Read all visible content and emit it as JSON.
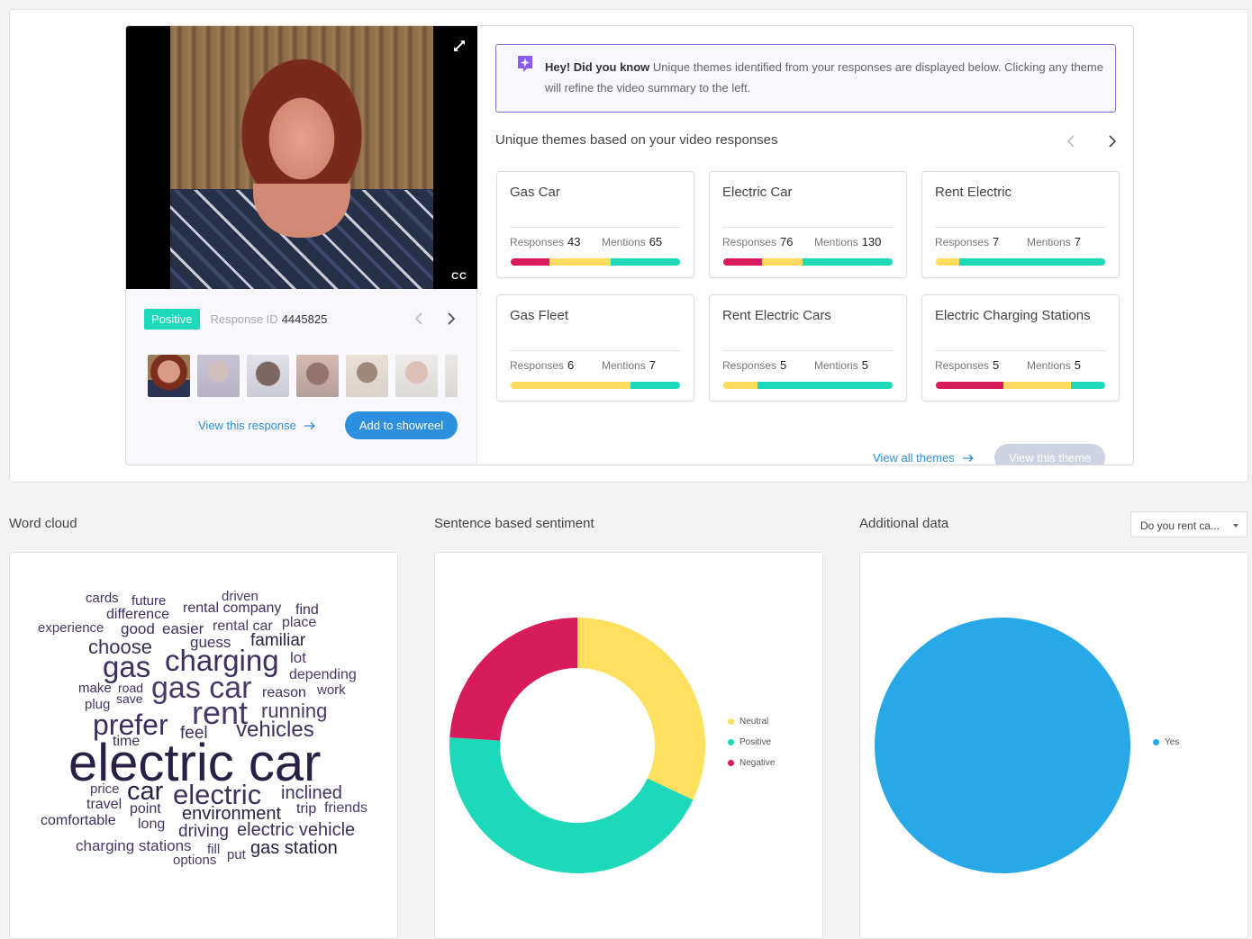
{
  "video": {
    "cc_label": "CC"
  },
  "response": {
    "sentiment_badge": "Positive",
    "id_label": "Response ID",
    "id_value": "4445825",
    "view_link": "View this response",
    "add_showreel": "Add to showreel"
  },
  "info": {
    "lead": "Hey! Did you know",
    "text": "Unique themes identified from your responses are displayed below. Clicking any theme will refine the video summary to the left."
  },
  "themes": {
    "title": "Unique themes based on your video responses",
    "responses_label": "Responses",
    "mentions_label": "Mentions",
    "view_all": "View all themes",
    "view_theme": "View this theme",
    "colors": {
      "negative": "#d81b5a",
      "neutral": "#ffdc5e",
      "positive": "#1ed9b9"
    },
    "items": [
      {
        "name": "Gas Car",
        "responses": "43",
        "mentions": "65",
        "sentiment": {
          "negative": 0.23,
          "neutral": 0.36,
          "positive": 0.41
        }
      },
      {
        "name": "Electric Car",
        "responses": "76",
        "mentions": "130",
        "sentiment": {
          "negative": 0.23,
          "neutral": 0.24,
          "positive": 0.53
        }
      },
      {
        "name": "Rent Electric",
        "responses": "7",
        "mentions": "7",
        "sentiment": {
          "negative": 0,
          "neutral": 0.14,
          "positive": 0.86
        }
      },
      {
        "name": "Gas Fleet",
        "responses": "6",
        "mentions": "7",
        "sentiment": {
          "negative": 0,
          "neutral": 0.71,
          "positive": 0.29
        }
      },
      {
        "name": "Rent Electric Cars",
        "responses": "5",
        "mentions": "5",
        "sentiment": {
          "negative": 0,
          "neutral": 0.2,
          "positive": 0.8
        }
      },
      {
        "name": "Electric Charging Stations",
        "responses": "5",
        "mentions": "5",
        "sentiment": {
          "negative": 0.4,
          "neutral": 0.4,
          "positive": 0.2
        }
      }
    ]
  },
  "sections": {
    "word_cloud": "Word cloud",
    "sentiment": "Sentence based sentiment",
    "additional": "Additional data",
    "dropdown_value": "Do you rent ca..."
  },
  "word_cloud": {
    "words": [
      {
        "text": "electric car",
        "weight": 10
      },
      {
        "text": "rent",
        "weight": 6
      },
      {
        "text": "gas car",
        "weight": 6
      },
      {
        "text": "gas",
        "weight": 5.5
      },
      {
        "text": "charging",
        "weight": 5.5
      },
      {
        "text": "prefer",
        "weight": 5
      },
      {
        "text": "car",
        "weight": 5
      },
      {
        "text": "electric",
        "weight": 5
      },
      {
        "text": "vehicles",
        "weight": 4
      },
      {
        "text": "running",
        "weight": 3.5
      },
      {
        "text": "choose",
        "weight": 3.5
      },
      {
        "text": "familiar",
        "weight": 3
      },
      {
        "text": "environment",
        "weight": 3
      },
      {
        "text": "inclined",
        "weight": 3
      },
      {
        "text": "electric vehicle",
        "weight": 3
      },
      {
        "text": "gas station",
        "weight": 3
      },
      {
        "text": "driving",
        "weight": 3
      },
      {
        "text": "feel",
        "weight": 3
      },
      {
        "text": "time",
        "weight": 2.5
      },
      {
        "text": "charging stations",
        "weight": 2.5
      },
      {
        "text": "comfortable",
        "weight": 2.5
      },
      {
        "text": "travel",
        "weight": 2.5
      },
      {
        "text": "price",
        "weight": 2.5
      },
      {
        "text": "point",
        "weight": 2.5
      },
      {
        "text": "long",
        "weight": 2.5
      },
      {
        "text": "trip",
        "weight": 2.5
      },
      {
        "text": "friends",
        "weight": 2.5
      },
      {
        "text": "reason",
        "weight": 2.5
      },
      {
        "text": "work",
        "weight": 2.5
      },
      {
        "text": "lot",
        "weight": 2.5
      },
      {
        "text": "depending",
        "weight": 2.5
      },
      {
        "text": "make",
        "weight": 2.5
      },
      {
        "text": "road",
        "weight": 2
      },
      {
        "text": "save",
        "weight": 2
      },
      {
        "text": "plug",
        "weight": 2.5
      },
      {
        "text": "guess",
        "weight": 2.5
      },
      {
        "text": "experience",
        "weight": 2.5
      },
      {
        "text": "good",
        "weight": 2.5
      },
      {
        "text": "easier",
        "weight": 2.5
      },
      {
        "text": "rental car",
        "weight": 2.5
      },
      {
        "text": "place",
        "weight": 2.5
      },
      {
        "text": "difference",
        "weight": 2.5
      },
      {
        "text": "rental company",
        "weight": 2.5
      },
      {
        "text": "find",
        "weight": 2.5
      },
      {
        "text": "cards",
        "weight": 2.5
      },
      {
        "text": "future",
        "weight": 2.5
      },
      {
        "text": "driven",
        "weight": 2.5
      },
      {
        "text": "fill",
        "weight": 2.5
      },
      {
        "text": "put",
        "weight": 2.5
      },
      {
        "text": "options",
        "weight": 2.5
      }
    ]
  },
  "chart_data": [
    {
      "type": "pie",
      "donut": true,
      "labels": [
        "Neutral",
        "Positive",
        "Negative"
      ],
      "values": [
        32,
        44,
        24
      ],
      "colors": [
        "#ffdf5e",
        "#1ed9b9",
        "#d81b5a"
      ],
      "legend": "right"
    },
    {
      "type": "pie",
      "donut": false,
      "labels": [
        "Yes"
      ],
      "values": [
        100
      ],
      "colors": [
        "#27a9e8"
      ],
      "legend": "right"
    }
  ]
}
